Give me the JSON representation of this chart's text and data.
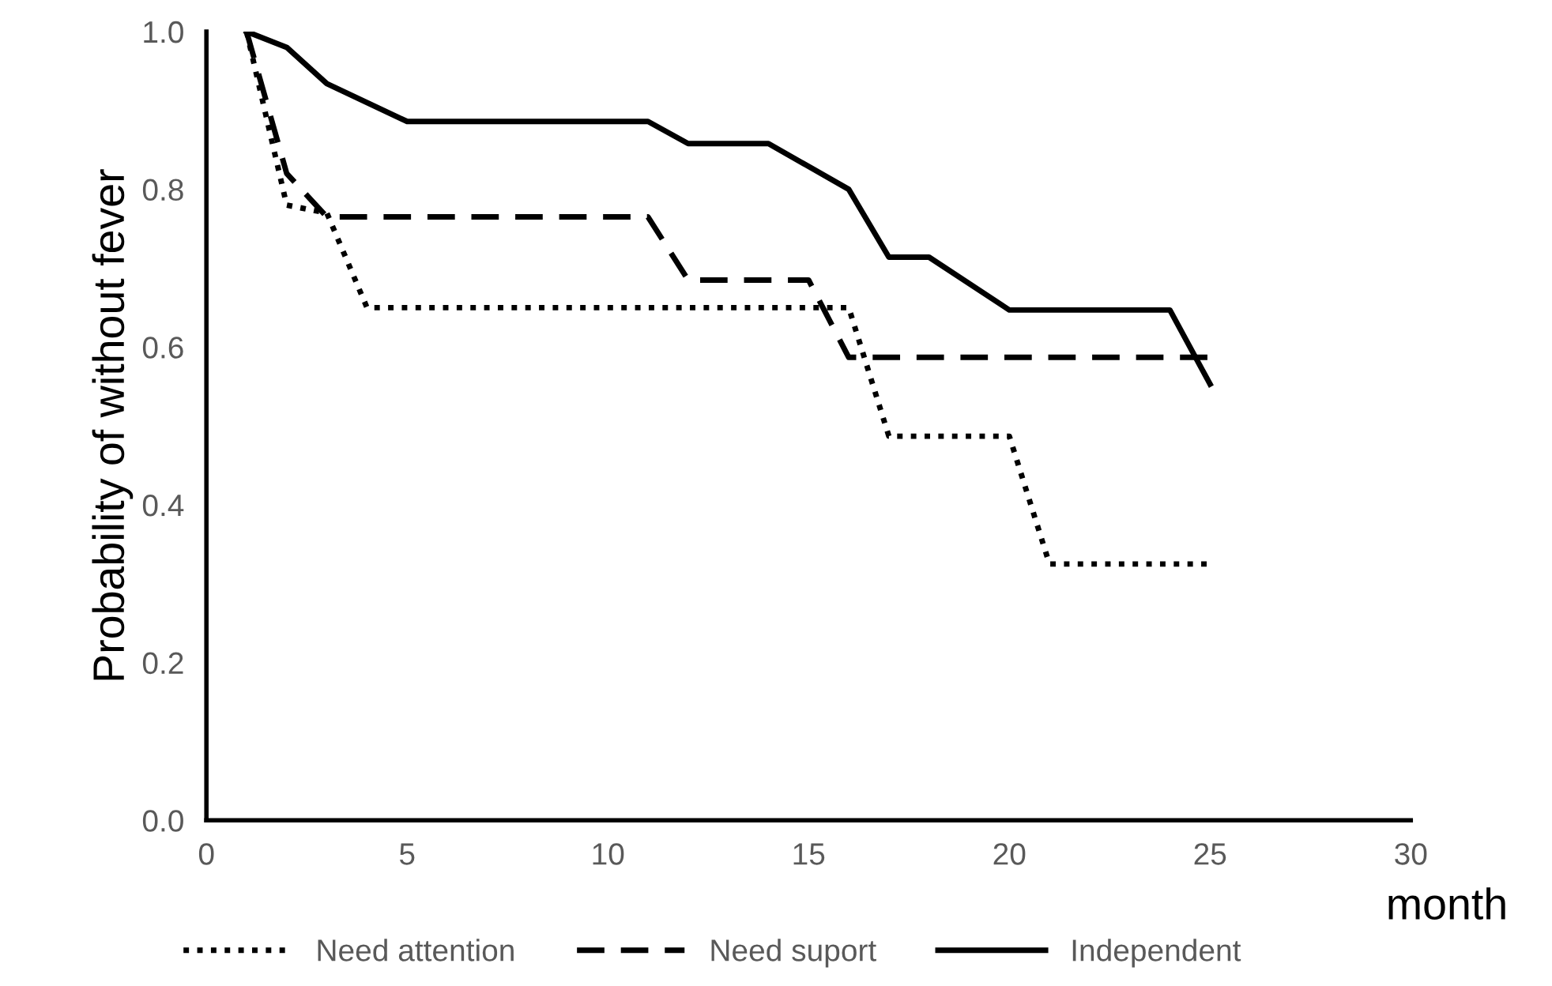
{
  "chart_data": {
    "type": "line",
    "xlabel": "month",
    "ylabel": "Probability of without fever",
    "xlim": [
      0,
      30
    ],
    "xticks": [
      0,
      5,
      10,
      15,
      20,
      25,
      30
    ],
    "ylim": [
      0,
      1.0
    ],
    "yticks": [
      {
        "value": 0,
        "label": "0.0"
      },
      {
        "value": 0.2,
        "label": "0.2"
      },
      {
        "value": 0.4,
        "label": "0.4"
      },
      {
        "value": 0.6,
        "label": "0.6"
      },
      {
        "value": 0.8,
        "label": "0.8"
      },
      {
        "value": 1.0,
        "label": "1.0"
      }
    ],
    "grid": false,
    "legend": "bottom",
    "marker": "none",
    "series": [
      {
        "name": "Need attention",
        "color": "#000000",
        "line_style": "dotted",
        "x": [
          1,
          2,
          3,
          4,
          16,
          17,
          20,
          21,
          25
        ],
        "values": [
          1.0,
          0.78,
          0.77,
          0.65,
          0.65,
          0.487,
          0.487,
          0.325,
          0.325
        ]
      },
      {
        "name": "Need suport",
        "color": "#000000",
        "line_style": "dashed",
        "x": [
          1,
          2,
          3,
          11,
          12,
          15,
          16,
          25
        ],
        "values": [
          1.0,
          0.82,
          0.765,
          0.765,
          0.685,
          0.685,
          0.587,
          0.587
        ]
      },
      {
        "name": "Independent",
        "color": "#000000",
        "line_style": "solid",
        "x": [
          1,
          2,
          3,
          5,
          11,
          12,
          14,
          16,
          17,
          18,
          20,
          24,
          25
        ],
        "values": [
          1.0,
          0.98,
          0.934,
          0.886,
          0.886,
          0.858,
          0.858,
          0.8,
          0.714,
          0.714,
          0.647,
          0.647,
          0.553
        ]
      }
    ]
  }
}
